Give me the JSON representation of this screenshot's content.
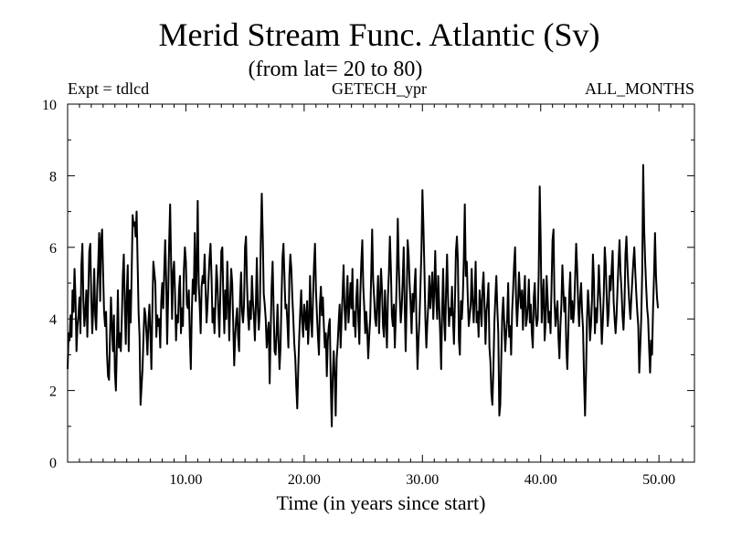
{
  "chart_data": {
    "type": "line",
    "title": "Merid Stream Func. Atlantic (Sv)",
    "subtitle": "(from lat= 20 to 80)",
    "header_left": "Expt = tdlcd",
    "header_center": "GETECH_ypr",
    "header_right": "ALL_MONTHS",
    "xlabel": "Time (in years since start)",
    "ylabel": "",
    "xlim": [
      0.0,
      53.0
    ],
    "ylim": [
      0,
      10
    ],
    "x_ticks": [
      10,
      20,
      30,
      40,
      50
    ],
    "x_tick_labels": [
      "10.00",
      "20.00",
      "30.00",
      "40.00",
      "50.00"
    ],
    "y_ticks": [
      0,
      2,
      4,
      6,
      8,
      10
    ],
    "y_tick_labels": [
      "0",
      "2",
      "4",
      "6",
      "8",
      "10"
    ],
    "grid": false,
    "line_color": "#000000",
    "series": [
      {
        "x_start": 0.0,
        "x_step": 0.083333,
        "values": [
          2.6,
          3.6,
          3.4,
          4.1,
          3.5,
          4.8,
          4.2,
          5.4,
          4.6,
          3.1,
          3.8,
          4.1,
          4.6,
          3.6,
          5.5,
          6.1,
          4.5,
          3.8,
          4.2,
          4.8,
          3.5,
          4.7,
          5.9,
          6.1,
          4.6,
          3.6,
          4.3,
          5.4,
          4.1,
          3.7,
          4.8,
          5.5,
          6.4,
          4.5,
          6.2,
          6.5,
          5.3,
          4.2,
          3.8,
          4.2,
          3.0,
          2.4,
          2.3,
          3.5,
          4.6,
          3.8,
          3.1,
          4.1,
          2.5,
          2.0,
          3.3,
          4.8,
          3.2,
          3.6,
          3.1,
          4.0,
          5.2,
          5.8,
          4.4,
          3.3,
          4.7,
          5.5,
          3.1,
          4.8,
          3.9,
          5.3,
          6.9,
          6.6,
          6.7,
          6.3,
          7.0,
          5.6,
          4.2,
          3.5,
          1.6,
          2.1,
          2.6,
          3.5,
          4.3,
          4.1,
          3.6,
          3.0,
          3.9,
          4.4,
          3.6,
          2.6,
          4.3,
          5.6,
          5.3,
          5.0,
          3.5,
          4.1,
          3.8,
          4.0,
          3.2,
          4.5,
          5.0,
          4.3,
          5.3,
          6.2,
          5.1,
          3.3,
          4.6,
          6.1,
          7.2,
          5.6,
          4.0,
          5.3,
          5.6,
          4.7,
          3.4,
          4.1,
          3.9,
          4.8,
          5.2,
          3.6,
          4.3,
          3.8,
          5.4,
          6.0,
          5.6,
          4.4,
          4.3,
          4.8,
          3.5,
          2.6,
          4.2,
          5.1,
          4.7,
          6.4,
          4.5,
          5.4,
          7.3,
          5.0,
          4.4,
          3.6,
          4.9,
          5.2,
          5.0,
          5.8,
          4.8,
          3.9,
          4.4,
          5.1,
          5.7,
          6.1,
          5.2,
          3.9,
          4.3,
          3.6,
          4.4,
          5.5,
          5.0,
          4.2,
          3.5,
          4.8,
          5.9,
          6.0,
          4.6,
          3.6,
          4.8,
          4.0,
          5.6,
          4.6,
          3.4,
          4.5,
          5.4,
          5.0,
          3.9,
          2.7,
          3.5,
          4.0,
          4.3,
          3.5,
          3.1,
          4.6,
          5.3,
          4.2,
          3.9,
          4.4,
          6.0,
          6.3,
          5.0,
          4.1,
          3.7,
          4.5,
          4.0,
          5.2,
          4.5,
          4.1,
          3.4,
          4.4,
          5.7,
          4.3,
          3.7,
          4.2,
          6.2,
          7.5,
          6.3,
          4.7,
          4.4,
          4.0,
          3.2,
          3.6,
          3.9,
          2.2,
          3.6,
          4.9,
          5.6,
          4.3,
          3.1,
          3.0,
          3.6,
          4.4,
          3.4,
          2.6,
          3.2,
          4.5,
          5.7,
          6.1,
          5.2,
          4.3,
          4.4,
          3.9,
          3.2,
          5.2,
          5.8,
          5.4,
          4.6,
          4.0,
          3.3,
          2.9,
          2.1,
          1.5,
          2.6,
          3.5,
          4.2,
          4.8,
          3.9,
          3.5,
          4.4,
          4.1,
          3.7,
          4.5,
          3.3,
          3.9,
          5.2,
          4.0,
          3.5,
          4.6,
          5.5,
          6.1,
          4.8,
          4.1,
          3.5,
          3.0,
          4.4,
          4.9,
          4.1,
          4.6,
          3.8,
          3.2,
          3.6,
          2.4,
          3.4,
          3.8,
          4.0,
          2.2,
          1.0,
          2.4,
          3.1,
          2.4,
          1.3,
          2.9,
          3.3,
          3.9,
          4.4,
          3.2,
          4.0,
          4.7,
          5.5,
          4.3,
          3.7,
          4.5,
          5.2,
          3.9,
          4.4,
          5.0,
          4.3,
          5.4,
          3.8,
          4.2,
          3.5,
          4.6,
          5.1,
          4.0,
          3.3,
          4.7,
          5.6,
          6.2,
          4.9,
          4.3,
          3.6,
          4.2,
          3.7,
          2.9,
          3.5,
          4.0,
          5.2,
          6.5,
          5.1,
          4.6,
          4.0,
          3.8,
          4.5,
          5.2,
          3.6,
          4.6,
          5.4,
          4.8,
          3.8,
          3.5,
          4.8,
          4.0,
          3.2,
          4.6,
          5.3,
          6.3,
          5.4,
          4.1,
          3.8,
          4.4,
          3.2,
          4.1,
          5.2,
          6.8,
          5.5,
          4.6,
          3.9,
          4.3,
          5.1,
          6.0,
          4.4,
          3.1,
          4.5,
          6.2,
          5.8,
          5.0,
          4.4,
          3.6,
          4.7,
          4.2,
          4.9,
          5.4,
          3.8,
          2.6,
          3.4,
          4.0,
          4.9,
          5.9,
          7.6,
          6.6,
          5.4,
          4.0,
          3.2,
          3.9,
          4.4,
          5.2,
          4.3,
          4.8,
          5.3,
          4.0,
          4.8,
          5.9,
          4.6,
          4.0,
          5.2,
          4.4,
          3.6,
          2.6,
          4.2,
          5.4,
          4.0,
          3.4,
          4.8,
          5.8,
          4.6,
          3.8,
          4.3,
          4.1,
          4.9,
          4.0,
          3.3,
          4.5,
          5.9,
          6.3,
          5.6,
          3.4,
          3.0,
          4.5,
          4.0,
          4.6,
          5.7,
          7.2,
          5.2,
          5.6,
          4.6,
          3.8,
          4.1,
          4.4,
          5.4,
          4.5,
          3.9,
          4.6,
          5.6,
          3.9,
          4.2,
          3.5,
          4.8,
          4.4,
          3.8,
          4.9,
          5.3,
          4.4,
          3.3,
          4.2,
          4.5,
          5.0,
          3.2,
          2.8,
          1.9,
          1.6,
          2.6,
          3.9,
          4.6,
          5.2,
          4.3,
          3.6,
          1.3,
          1.6,
          2.9,
          4.1,
          4.6,
          3.9,
          3.1,
          3.6,
          4.0,
          5.0,
          3.5,
          3.8,
          3.0,
          4.2,
          4.8,
          5.5,
          6.0,
          4.6,
          3.8,
          4.4,
          5.3,
          4.7,
          4.3,
          4.8,
          3.7,
          4.6,
          5.2,
          3.8,
          4.0,
          4.4,
          5.1,
          3.9,
          4.4,
          3.6,
          3.2,
          4.6,
          5.0,
          4.1,
          3.8,
          4.0,
          5.3,
          7.7,
          6.2,
          3.9,
          4.6,
          5.1,
          3.4,
          3.9,
          5.2,
          4.6,
          3.9,
          4.2,
          3.6,
          4.9,
          6.2,
          6.5,
          4.5,
          3.8,
          4.2,
          4.5,
          3.5,
          2.9,
          3.8,
          4.4,
          5.5,
          4.8,
          4.2,
          4.6,
          3.2,
          2.6,
          3.6,
          4.7,
          5.3,
          4.0,
          4.5,
          3.9,
          4.3,
          5.2,
          6.1,
          5.4,
          4.4,
          3.8,
          4.6,
          5.0,
          4.2,
          3.7,
          2.3,
          1.3,
          2.5,
          4.0,
          4.8,
          4.3,
          3.4,
          3.8,
          4.5,
          5.8,
          5.1,
          3.6,
          4.3,
          3.9,
          4.6,
          5.5,
          4.8,
          4.2,
          3.3,
          3.9,
          4.7,
          6.0,
          5.5,
          4.6,
          3.8,
          4.2,
          5.2,
          4.8,
          5.4,
          5.9,
          4.5,
          4.0,
          3.6,
          4.1,
          4.9,
          5.6,
          6.2,
          5.3,
          4.8,
          4.1,
          3.7,
          4.4,
          5.8,
          6.3,
          5.5,
          4.9,
          4.4,
          4.0,
          4.6,
          5.1,
          5.6,
          6.0,
          5.3,
          4.7,
          4.2,
          3.8,
          2.5,
          3.2,
          4.0,
          5.3,
          8.3,
          6.5,
          5.6,
          4.9,
          4.3,
          4.0,
          3.2,
          2.5,
          3.4,
          3.0,
          4.3,
          5.2,
          6.4,
          5.2,
          4.6,
          4.3
        ]
      }
    ]
  }
}
